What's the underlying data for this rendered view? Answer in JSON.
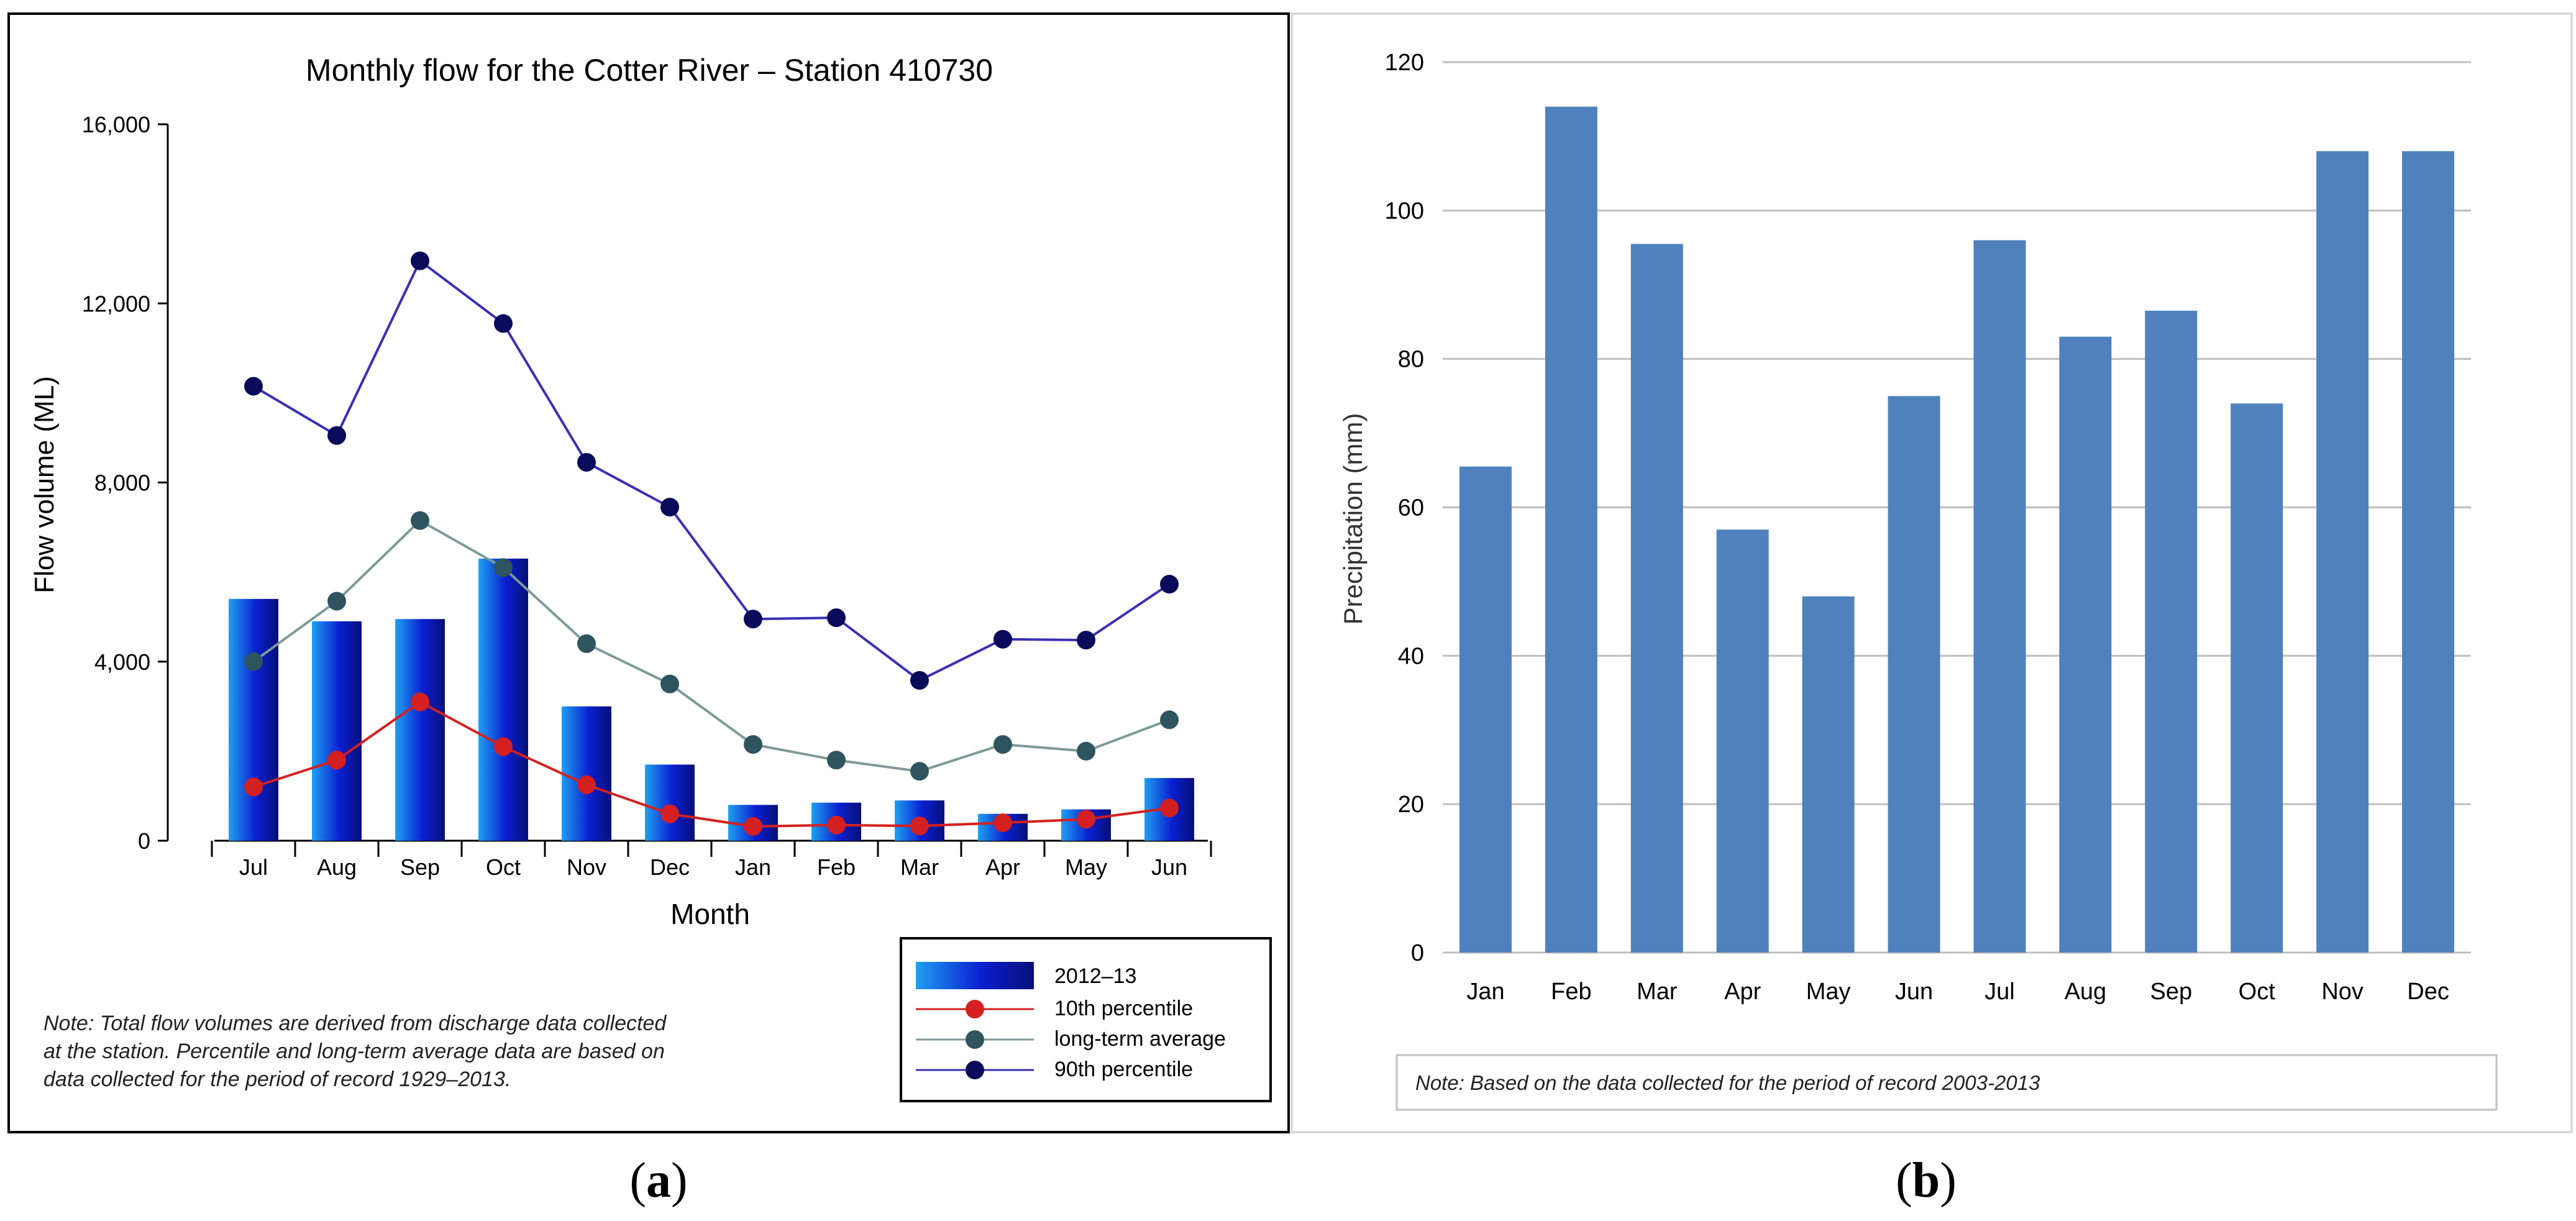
{
  "chart_data": [
    {
      "panel": "a",
      "type": "bar+line",
      "title": "Monthly flow for the Cotter River – Station 410730",
      "xlabel": "Month",
      "ylabel": "Flow volume (ML)",
      "ylim": [
        0,
        16000
      ],
      "yticks": [
        "0",
        "4,000",
        "8,000",
        "12,000",
        "16,000"
      ],
      "yticks_values": [
        0,
        4000,
        8000,
        12000,
        16000
      ],
      "categories": [
        "Jul",
        "Aug",
        "Sep",
        "Oct",
        "Nov",
        "Dec",
        "Jan",
        "Feb",
        "Mar",
        "Apr",
        "May",
        "Jun"
      ],
      "series": [
        {
          "name": "2012–13",
          "kind": "bar",
          "color": "#0a1fd0",
          "values": [
            5400,
            4900,
            4950,
            6300,
            3000,
            1700,
            800,
            850,
            900,
            600,
            700,
            1400
          ]
        },
        {
          "name": "10th percentile",
          "kind": "line",
          "color": "#d42020",
          "values": [
            1200,
            1800,
            3100,
            2100,
            1250,
            600,
            320,
            350,
            330,
            400,
            480,
            730
          ]
        },
        {
          "name": "long-term average",
          "kind": "line",
          "color": "#7d9a98",
          "marker": "#2e5460",
          "values": [
            4000,
            5350,
            7150,
            6100,
            4400,
            3500,
            2150,
            1800,
            1550,
            2150,
            2000,
            2700
          ]
        },
        {
          "name": "90th percentile",
          "kind": "line",
          "color": "#3a2fb4",
          "marker": "#0a0a5a",
          "values": [
            10150,
            9050,
            12950,
            11550,
            8450,
            7450,
            4950,
            4980,
            3580,
            4500,
            4480,
            5730
          ]
        }
      ],
      "legend": [
        "2012–13",
        "10th percentile",
        "long-term average",
        "90th percentile"
      ],
      "legend_position": "bottom-right",
      "note": [
        "Note: Total flow volumes are derived from discharge data collected",
        "at the station. Percentile and long-term average data are based on",
        "data collected for the period of record 1929–2013."
      ],
      "grid": false
    },
    {
      "panel": "b",
      "type": "bar",
      "title": "",
      "xlabel": "",
      "ylabel": "Precipitation (mm)",
      "ylim": [
        0,
        120
      ],
      "yticks": [
        "0",
        "20",
        "40",
        "60",
        "80",
        "100",
        "120"
      ],
      "yticks_values": [
        0,
        20,
        40,
        60,
        80,
        100,
        120
      ],
      "categories": [
        "Jan",
        "Feb",
        "Mar",
        "Apr",
        "May",
        "Jun",
        "Jul",
        "Aug",
        "Sep",
        "Oct",
        "Nov",
        "Dec"
      ],
      "values": [
        65.5,
        114,
        95.5,
        57,
        48,
        75,
        96,
        83,
        86.5,
        74,
        108,
        108
      ],
      "color": "#4f81bd",
      "note": "Note: Based on the data collected for the period of record 2003-2013",
      "grid": true
    }
  ],
  "captions": {
    "a": "a",
    "b": "b"
  }
}
